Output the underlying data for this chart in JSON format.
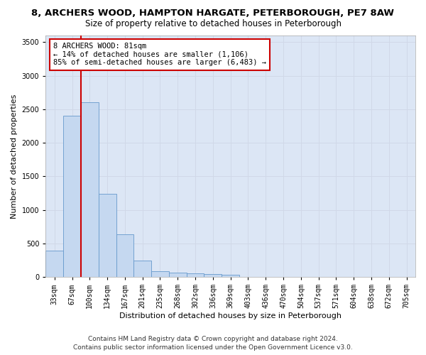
{
  "title_line1": "8, ARCHERS WOOD, HAMPTON HARGATE, PETERBOROUGH, PE7 8AW",
  "title_line2": "Size of property relative to detached houses in Peterborough",
  "xlabel": "Distribution of detached houses by size in Peterborough",
  "ylabel": "Number of detached properties",
  "bin_labels": [
    "33sqm",
    "67sqm",
    "100sqm",
    "134sqm",
    "167sqm",
    "201sqm",
    "235sqm",
    "268sqm",
    "302sqm",
    "336sqm",
    "369sqm",
    "403sqm",
    "436sqm",
    "470sqm",
    "504sqm",
    "537sqm",
    "571sqm",
    "604sqm",
    "638sqm",
    "672sqm",
    "705sqm"
  ],
  "bar_values": [
    390,
    2400,
    2600,
    1240,
    640,
    250,
    90,
    60,
    55,
    45,
    30,
    0,
    0,
    0,
    0,
    0,
    0,
    0,
    0,
    0,
    0
  ],
  "bar_color": "#c5d8f0",
  "bar_edge_color": "#6699cc",
  "property_line_x": 1.5,
  "property_line_color": "#cc0000",
  "annotation_text": "8 ARCHERS WOOD: 81sqm\n← 14% of detached houses are smaller (1,106)\n85% of semi-detached houses are larger (6,483) →",
  "annotation_box_facecolor": "#ffffff",
  "annotation_box_edgecolor": "#cc0000",
  "ylim": [
    0,
    3600
  ],
  "yticks": [
    0,
    500,
    1000,
    1500,
    2000,
    2500,
    3000,
    3500
  ],
  "grid_color": "#d0d8e8",
  "background_color": "#dce6f5",
  "footer_line1": "Contains HM Land Registry data © Crown copyright and database right 2024.",
  "footer_line2": "Contains public sector information licensed under the Open Government Licence v3.0.",
  "title_fontsize": 9.5,
  "subtitle_fontsize": 8.5,
  "axis_label_fontsize": 8,
  "tick_fontsize": 7,
  "annotation_fontsize": 7.5,
  "footer_fontsize": 6.5
}
